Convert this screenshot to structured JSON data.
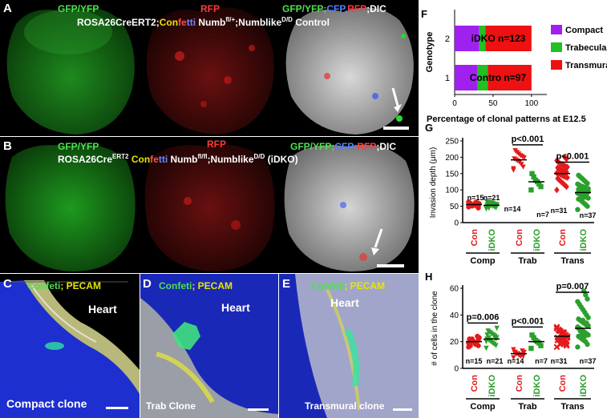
{
  "panels": {
    "A": {
      "label": "A",
      "ch_green": "GFP/YFP",
      "ch_red": "RFP",
      "merge": {
        "gfp": "GFP/YFP",
        "sep1": ";",
        "cfp": "CFP",
        "sep2": ",",
        "rfp": "RFP",
        "dic": ";DIC"
      },
      "genotype": {
        "a": "ROSA26CreERT2;",
        "c1": "Con",
        "c2": "fe",
        "c3": "tti",
        "b": " Numb",
        "sup1": "fl/+",
        "c": ";Numblike",
        "sup2": "D/D",
        "d": " Control"
      }
    },
    "B": {
      "label": "B",
      "ch_green": "GFP/YFP",
      "ch_red": "RFP",
      "merge": {
        "gfp": "GFP/YFP;",
        "cfp": "CFP",
        "sep": ";",
        "rfp": "RFP",
        "dic": ";DIC"
      },
      "genotype": {
        "a": "ROSA26Cre",
        "sup0": "ERT2",
        "b": " ",
        "c1": "Con",
        "c2": "fe",
        "c3": "tti",
        "c": " Numb",
        "sup1": "fl/fl",
        "d": ";Numblike",
        "sup2": "D/D",
        "e": " (iDKO)"
      }
    },
    "C": {
      "label": "C",
      "stain_a": "Confeti",
      "stain_sep": "; ",
      "stain_b": "PECAM",
      "organ": "Heart",
      "caption": "Compact clone"
    },
    "D": {
      "label": "D",
      "stain_a": "Confeti",
      "stain_sep": "; ",
      "stain_b": "PECAM",
      "organ": "Heart",
      "caption": "Trab Clone"
    },
    "E": {
      "label": "E",
      "stain_a": "Confeti",
      "stain_sep": "; ",
      "stain_b": "PECAM",
      "organ": "Heart",
      "caption": "Transmural clone"
    }
  },
  "chart_data": [
    {
      "panel": "F",
      "type": "bar",
      "orientation": "horizontal",
      "stacked": true,
      "categories": [
        "1",
        "2"
      ],
      "category_labels": [
        "Contro n=97",
        "iDKO n=123"
      ],
      "ylabel": "Genotype",
      "xlabel": "Percentage of clonal patterns at E12.5",
      "xticks": [
        0,
        50,
        100
      ],
      "xlim": [
        0,
        120
      ],
      "series": [
        {
          "name": "Compact",
          "color": "#a020f0",
          "values": [
            30,
            32
          ]
        },
        {
          "name": "Trabecular",
          "color": "#22c022",
          "values": [
            13,
            8
          ]
        },
        {
          "name": "Transmural",
          "color": "#ee1111",
          "values": [
            57,
            60
          ]
        }
      ],
      "legend": "right"
    },
    {
      "panel": "G",
      "type": "scatter",
      "ylabel_a": "Invasion depth (",
      "ylabel_mu": "μ",
      "ylabel_b": "m)",
      "yticks": [
        0,
        50,
        100,
        150,
        200,
        250
      ],
      "ylim": [
        0,
        250
      ],
      "groups": [
        {
          "name": "Con",
          "color": "#e41a1c",
          "marker": "circle",
          "mean": 55,
          "values": [
            48,
            50,
            52,
            53,
            55,
            56,
            57,
            58,
            60,
            62,
            54,
            51,
            59,
            63,
            45
          ],
          "n": "n=15"
        },
        {
          "name": "iDKO",
          "color": "#2ca02c",
          "marker": "triangle-down",
          "mean": 53,
          "values": [
            42,
            45,
            48,
            50,
            52,
            53,
            54,
            55,
            56,
            58,
            60,
            62,
            50,
            47,
            52,
            55,
            57,
            59,
            44,
            63,
            51
          ],
          "n": "n=21"
        },
        {
          "name": "Con",
          "color": "#e41a1c",
          "marker": "triangle-down",
          "mean": 192,
          "values": [
            160,
            170,
            178,
            185,
            188,
            192,
            195,
            198,
            202,
            205,
            210,
            215,
            220,
            165
          ],
          "n": "n=14"
        },
        {
          "name": "iDKO",
          "color": "#2ca02c",
          "marker": "square",
          "mean": 125,
          "values": [
            100,
            110,
            118,
            125,
            130,
            140,
            150
          ],
          "n": "n=7"
        },
        {
          "name": "Con",
          "color": "#e41a1c",
          "marker": "diamond",
          "mean": 150,
          "values": [
            100,
            110,
            115,
            120,
            125,
            130,
            135,
            138,
            140,
            142,
            145,
            148,
            150,
            152,
            155,
            158,
            160,
            162,
            165,
            168,
            170,
            172,
            175,
            178,
            180,
            185,
            190,
            195,
            200,
            145,
            155
          ],
          "n": "n=31"
        },
        {
          "name": "iDKO",
          "color": "#2ca02c",
          "marker": "circle",
          "mean": 92,
          "values": [
            40,
            50,
            55,
            60,
            65,
            70,
            72,
            75,
            78,
            80,
            82,
            85,
            88,
            90,
            92,
            94,
            96,
            98,
            100,
            102,
            104,
            106,
            108,
            110,
            112,
            115,
            118,
            120,
            125,
            130,
            135,
            140,
            145,
            95,
            88,
            84,
            76
          ],
          "n": "n=37"
        }
      ],
      "group_names": [
        "Comp",
        "Trab",
        "Trans"
      ],
      "significance": [
        {
          "label": "p<0.001",
          "between": [
            2,
            3
          ],
          "y": 238
        },
        {
          "label": "p<0.001",
          "between": [
            4,
            5
          ],
          "y": 185
        }
      ]
    },
    {
      "panel": "H",
      "type": "scatter",
      "ylabel": "# of cells in the clone",
      "yticks": [
        0,
        20,
        40,
        60
      ],
      "ylim": [
        0,
        60
      ],
      "groups": [
        {
          "name": "Con",
          "color": "#e41a1c",
          "marker": "circle",
          "mean": 20,
          "values": [
            16,
            17,
            18,
            19,
            20,
            21,
            22,
            23,
            24,
            18,
            20,
            22,
            17,
            19,
            21
          ],
          "n": "n=15"
        },
        {
          "name": "iDKO",
          "color": "#2ca02c",
          "marker": "triangle-down",
          "mean": 22,
          "values": [
            15,
            17,
            18,
            19,
            20,
            21,
            22,
            23,
            24,
            25,
            26,
            27,
            28,
            20,
            22,
            24,
            19,
            21,
            23,
            25,
            30
          ],
          "n": "n=21"
        },
        {
          "name": "Con",
          "color": "#e41a1c",
          "marker": "triangle-down",
          "mean": 11,
          "values": [
            8,
            9,
            10,
            10,
            11,
            11,
            12,
            12,
            13,
            9,
            10,
            11,
            12,
            14
          ],
          "n": "n=14"
        },
        {
          "name": "iDKO",
          "color": "#2ca02c",
          "marker": "square",
          "mean": 20,
          "values": [
            15,
            17,
            19,
            20,
            21,
            23,
            25
          ],
          "n": "n=7"
        },
        {
          "name": "Con",
          "color": "#e41a1c",
          "marker": "cross",
          "mean": 24,
          "values": [
            16,
            18,
            19,
            20,
            21,
            22,
            23,
            24,
            25,
            26,
            27,
            28,
            29,
            30,
            20,
            22,
            24,
            26,
            28,
            21,
            23,
            25,
            27,
            19,
            18,
            29,
            31,
            17,
            24,
            23,
            22
          ],
          "n": "n=31"
        },
        {
          "name": "iDKO",
          "color": "#2ca02c",
          "marker": "circle",
          "mean": 30,
          "values": [
            16,
            18,
            20,
            21,
            22,
            23,
            24,
            25,
            26,
            27,
            28,
            29,
            30,
            31,
            32,
            33,
            34,
            35,
            36,
            37,
            38,
            40,
            42,
            44,
            46,
            48,
            50,
            52,
            55,
            58,
            26,
            28,
            30,
            32,
            34,
            24,
            36
          ],
          "n": "n=37"
        }
      ],
      "group_names": [
        "Comp",
        "Trab",
        "Trans"
      ],
      "significance": [
        {
          "label": "p=0.006",
          "between": [
            0,
            1
          ],
          "y": 34
        },
        {
          "label": "p<0.001",
          "between": [
            2,
            3
          ],
          "y": 31
        },
        {
          "label": "p=0.007",
          "between": [
            4,
            5
          ],
          "y": 57
        }
      ]
    }
  ]
}
